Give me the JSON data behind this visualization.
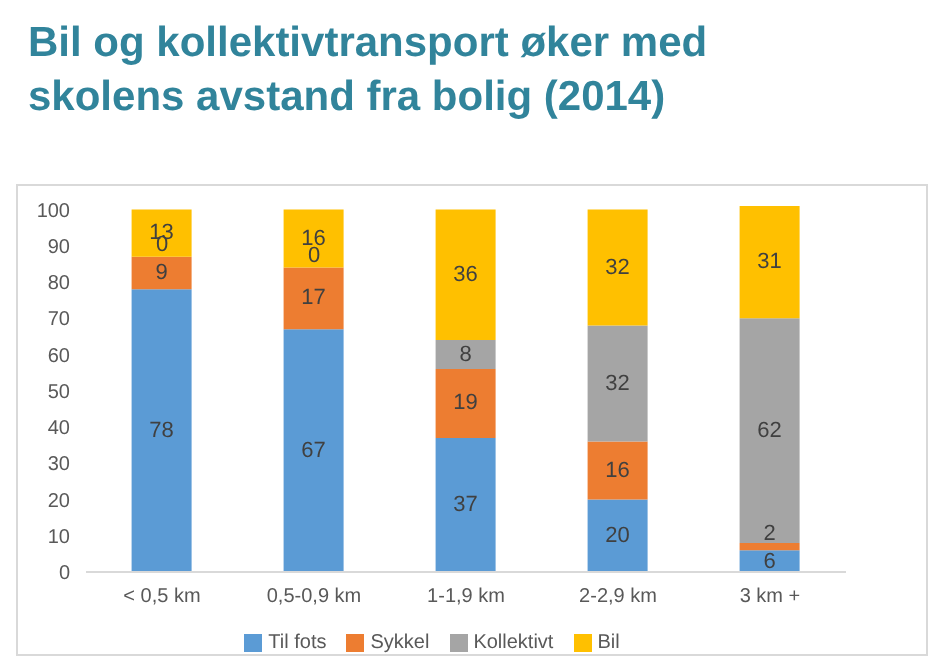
{
  "chart_data": {
    "type": "bar",
    "stacked": true,
    "title": "Bil og kollektivtransport øker med skolens avstand fra bolig (2014)",
    "categories": [
      "< 0,5 km",
      "0,5-0,9 km",
      "1-1,9 km",
      "2-2,9 km",
      "3 km +"
    ],
    "series": [
      {
        "name": "Til fots",
        "color": "#5b9bd5",
        "values": [
          78,
          67,
          37,
          20,
          6
        ]
      },
      {
        "name": "Sykkel",
        "color": "#ed7d31",
        "values": [
          9,
          17,
          19,
          16,
          2
        ]
      },
      {
        "name": "Kollektivt",
        "color": "#a5a5a5",
        "values": [
          0,
          0,
          8,
          32,
          62
        ]
      },
      {
        "name": "Bil",
        "color": "#ffc000",
        "values": [
          13,
          16,
          36,
          32,
          31
        ]
      }
    ],
    "ylim": [
      0,
      101
    ],
    "yticks": [
      0,
      10,
      20,
      30,
      40,
      50,
      60,
      70,
      80,
      90,
      100
    ],
    "grid": false,
    "legend": "bottom",
    "data_labels": true
  }
}
